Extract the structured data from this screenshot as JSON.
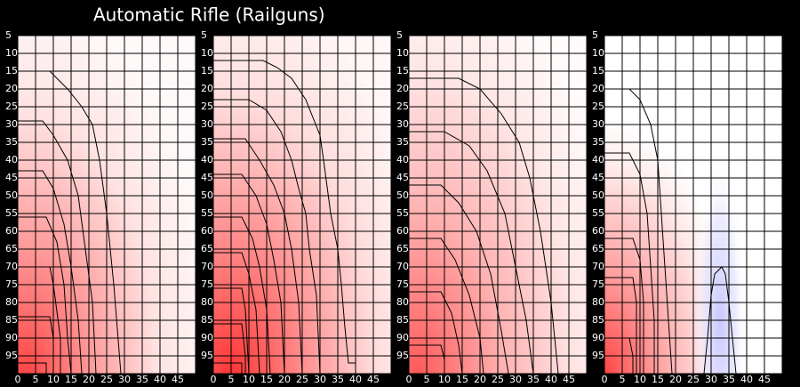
{
  "title": "Automatic Rifle (Railguns)",
  "chart_data": [
    {
      "type": "contour",
      "xlim": [
        0,
        50
      ],
      "ylim": [
        5,
        100
      ],
      "y_inverted": true,
      "xticks": [
        0,
        5,
        10,
        15,
        20,
        25,
        30,
        35,
        40,
        45
      ],
      "yticks": [
        5,
        10,
        15,
        20,
        25,
        30,
        35,
        40,
        45,
        50,
        55,
        60,
        65,
        70,
        75,
        80,
        85,
        90,
        95
      ],
      "grid": true,
      "contours": [
        {
          "color": "#000000",
          "x": [
            0,
            9,
            14,
            18,
            21,
            23,
            25,
            27,
            29
          ],
          "y": [
            15,
            15,
            20,
            25,
            30,
            40,
            55,
            75,
            100
          ]
        },
        {
          "color": "#000000",
          "x": [
            0,
            7,
            10,
            14,
            17,
            19,
            21,
            22
          ],
          "y": [
            29,
            29,
            33,
            40,
            50,
            65,
            80,
            100
          ]
        },
        {
          "color": "#000000",
          "x": [
            0,
            7,
            10,
            13,
            15,
            17,
            18
          ],
          "y": [
            43,
            43,
            48,
            58,
            70,
            85,
            100
          ]
        },
        {
          "color": "#000000",
          "x": [
            0,
            8,
            11,
            13,
            14,
            15
          ],
          "y": [
            56,
            56,
            63,
            75,
            90,
            100
          ]
        },
        {
          "color": "#000000",
          "x": [
            0,
            9,
            10,
            12,
            12
          ],
          "y": [
            70,
            70,
            75,
            90,
            100
          ]
        },
        {
          "color": "#000000",
          "x": [
            0,
            9,
            10,
            10
          ],
          "y": [
            84,
            84,
            90,
            100
          ]
        },
        {
          "color": "#000000",
          "x": [
            0,
            8,
            8
          ],
          "y": [
            97,
            97,
            100
          ]
        }
      ]
    },
    {
      "type": "contour",
      "xlim": [
        0,
        50
      ],
      "ylim": [
        5,
        100
      ],
      "y_inverted": true,
      "xticks": [
        0,
        5,
        10,
        15,
        20,
        25,
        30,
        35,
        40,
        45
      ],
      "yticks": [
        5,
        10,
        15,
        20,
        25,
        30,
        35,
        40,
        45,
        50,
        55,
        60,
        65,
        70,
        75,
        80,
        85,
        90,
        95
      ],
      "grid": true,
      "contours": [
        {
          "color": "#000000",
          "x": [
            0,
            14,
            18,
            22,
            26,
            28,
            30,
            31,
            33,
            35,
            36,
            37,
            38,
            40,
            40
          ],
          "y": [
            12,
            12,
            14,
            17,
            23,
            28,
            33,
            40,
            55,
            65,
            75,
            87,
            97,
            97,
            100
          ]
        },
        {
          "color": "#000000",
          "x": [
            0,
            10,
            15,
            19,
            22,
            24,
            26,
            27,
            29,
            30
          ],
          "y": [
            23,
            23,
            26,
            32,
            40,
            48,
            55,
            65,
            78,
            100
          ]
        },
        {
          "color": "#000000",
          "x": [
            0,
            9,
            13,
            17,
            20,
            22,
            24,
            25
          ],
          "y": [
            34,
            34,
            40,
            47,
            55,
            65,
            80,
            100
          ]
        },
        {
          "color": "#000000",
          "x": [
            0,
            8,
            12,
            15,
            17,
            19,
            20
          ],
          "y": [
            44,
            44,
            50,
            58,
            68,
            80,
            100
          ]
        },
        {
          "color": "#000000",
          "x": [
            0,
            8,
            11,
            13,
            15,
            16
          ],
          "y": [
            56,
            56,
            62,
            70,
            82,
            100
          ]
        },
        {
          "color": "#000000",
          "x": [
            0,
            8,
            10,
            12,
            13
          ],
          "y": [
            66,
            66,
            72,
            82,
            100
          ]
        },
        {
          "color": "#000000",
          "x": [
            0,
            8,
            9,
            10
          ],
          "y": [
            76,
            76,
            82,
            100
          ]
        },
        {
          "color": "#000000",
          "x": [
            0,
            8,
            9,
            9
          ],
          "y": [
            86,
            86,
            95,
            100
          ]
        },
        {
          "color": "#000000",
          "x": [
            0,
            8,
            8
          ],
          "y": [
            97,
            97,
            100
          ]
        }
      ]
    },
    {
      "type": "contour",
      "xlim": [
        0,
        50
      ],
      "ylim": [
        5,
        100
      ],
      "y_inverted": true,
      "xticks": [
        0,
        5,
        10,
        15,
        20,
        25,
        30,
        35,
        40,
        45
      ],
      "yticks": [
        5,
        10,
        15,
        20,
        25,
        30,
        35,
        40,
        45,
        50,
        55,
        60,
        65,
        70,
        75,
        80,
        85,
        90,
        95
      ],
      "grid": true,
      "contours": [
        {
          "color": "#000000",
          "x": [
            0,
            14,
            20,
            26,
            31,
            34,
            37,
            40,
            42
          ],
          "y": [
            17,
            17,
            20,
            27,
            35,
            45,
            60,
            80,
            100
          ]
        },
        {
          "color": "#000000",
          "x": [
            0,
            10,
            17,
            22,
            27,
            30,
            33,
            35
          ],
          "y": [
            32,
            32,
            36,
            43,
            55,
            70,
            85,
            100
          ]
        },
        {
          "color": "#000000",
          "x": [
            0,
            9,
            14,
            19,
            23,
            26,
            28
          ],
          "y": [
            47,
            47,
            52,
            60,
            72,
            88,
            100
          ]
        },
        {
          "color": "#000000",
          "x": [
            0,
            9,
            13,
            17,
            20,
            21
          ],
          "y": [
            62,
            62,
            68,
            78,
            90,
            100
          ]
        },
        {
          "color": "#000000",
          "x": [
            0,
            9,
            12,
            14,
            15
          ],
          "y": [
            77,
            77,
            83,
            92,
            100
          ]
        },
        {
          "color": "#000000",
          "x": [
            0,
            9,
            10,
            10
          ],
          "y": [
            92,
            92,
            96,
            100
          ]
        }
      ]
    },
    {
      "type": "contour",
      "xlim": [
        0,
        50
      ],
      "ylim": [
        5,
        100
      ],
      "y_inverted": true,
      "xticks": [
        0,
        5,
        10,
        15,
        20,
        25,
        30,
        35,
        40,
        45
      ],
      "yticks": [
        5,
        10,
        15,
        20,
        25,
        30,
        35,
        40,
        45,
        50,
        55,
        60,
        65,
        70,
        75,
        80,
        85,
        90,
        95
      ],
      "grid": true,
      "contours": [
        {
          "color": "#000000",
          "x": [
            0,
            7,
            10,
            13,
            15,
            16,
            17,
            18,
            19
          ],
          "y": [
            20,
            20,
            23,
            30,
            40,
            55,
            70,
            85,
            100
          ]
        },
        {
          "color": "#000000",
          "x": [
            0,
            7,
            10,
            12,
            13,
            14,
            14
          ],
          "y": [
            38,
            38,
            44,
            55,
            70,
            85,
            100
          ]
        },
        {
          "color": "#000000",
          "x": [
            0,
            8,
            10,
            11,
            11
          ],
          "y": [
            62,
            62,
            68,
            80,
            100
          ]
        },
        {
          "color": "#000000",
          "x": [
            0,
            8,
            9,
            9
          ],
          "y": [
            73,
            73,
            80,
            100
          ]
        },
        {
          "color": "#000000",
          "x": [
            0,
            7,
            8,
            8
          ],
          "y": [
            90,
            90,
            95,
            100
          ]
        },
        {
          "color": "#000000",
          "x": [
            28,
            29,
            30,
            31,
            33,
            34,
            35,
            36,
            37
          ],
          "y": [
            100,
            90,
            78,
            72,
            70,
            72,
            80,
            90,
            100
          ]
        }
      ]
    }
  ]
}
